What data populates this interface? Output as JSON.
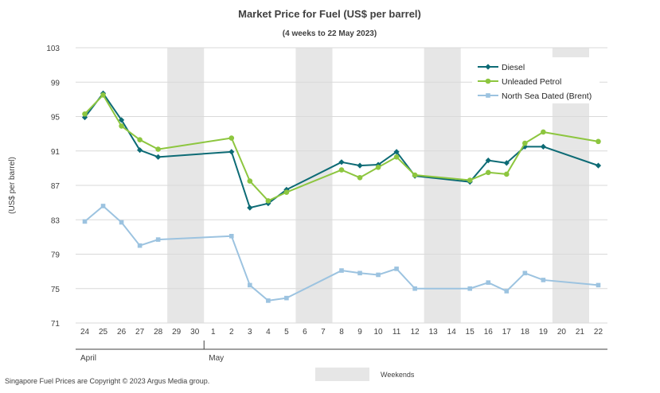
{
  "chart_data": {
    "type": "line",
    "title": "Market Price for Fuel (US$ per barrel)",
    "subtitle": "(4 weeks to 22 May 2023)",
    "ylabel": "(US$ per barrel)",
    "xlabel": "",
    "ylim": [
      71,
      103
    ],
    "yticks": [
      71,
      75,
      79,
      83,
      87,
      91,
      95,
      99,
      103
    ],
    "grid": true,
    "legend_position": "top-right",
    "x": [
      "24",
      "25",
      "26",
      "27",
      "28",
      "29",
      "30",
      "1",
      "2",
      "3",
      "4",
      "5",
      "6",
      "7",
      "8",
      "9",
      "10",
      "11",
      "12",
      "13",
      "14",
      "15",
      "16",
      "17",
      "18",
      "19",
      "20",
      "21",
      "22"
    ],
    "months": [
      {
        "label": "April",
        "start": 0,
        "end": 6
      },
      {
        "label": "May",
        "start": 7,
        "end": 28
      }
    ],
    "weekend_bands": [
      [
        5,
        6
      ],
      [
        12,
        13
      ],
      [
        19,
        20
      ],
      [
        26,
        27
      ]
    ],
    "series": [
      {
        "name": "Diesel",
        "color": "#0d6b75",
        "marker": "diamond",
        "values": [
          94.9,
          97.7,
          94.6,
          91.1,
          90.3,
          null,
          null,
          null,
          90.9,
          84.4,
          84.9,
          86.5,
          null,
          null,
          89.7,
          89.3,
          89.4,
          90.9,
          88.1,
          null,
          null,
          87.4,
          89.9,
          89.6,
          91.5,
          91.5,
          null,
          null,
          89.3
        ]
      },
      {
        "name": "Unleaded Petrol",
        "color": "#8dc63f",
        "marker": "circle",
        "values": [
          95.3,
          97.5,
          93.9,
          92.3,
          91.2,
          null,
          null,
          null,
          92.5,
          87.5,
          85.2,
          86.2,
          null,
          null,
          88.8,
          87.9,
          89.1,
          90.3,
          88.2,
          null,
          null,
          87.6,
          88.5,
          88.3,
          91.9,
          93.2,
          null,
          null,
          92.1
        ]
      },
      {
        "name": "North Sea Dated (Brent)",
        "color": "#9cc3e0",
        "marker": "square",
        "values": [
          82.8,
          84.6,
          82.7,
          80.0,
          80.7,
          null,
          null,
          null,
          81.1,
          75.4,
          73.6,
          73.9,
          null,
          null,
          77.1,
          76.8,
          76.6,
          77.3,
          75.0,
          null,
          null,
          75.0,
          75.7,
          74.7,
          76.8,
          76.0,
          null,
          null,
          75.4
        ]
      }
    ],
    "legend_extra": "Weekends"
  },
  "footer": {
    "copyright": "Singapore Fuel Prices are Copyright © 2023 Argus Media group."
  }
}
